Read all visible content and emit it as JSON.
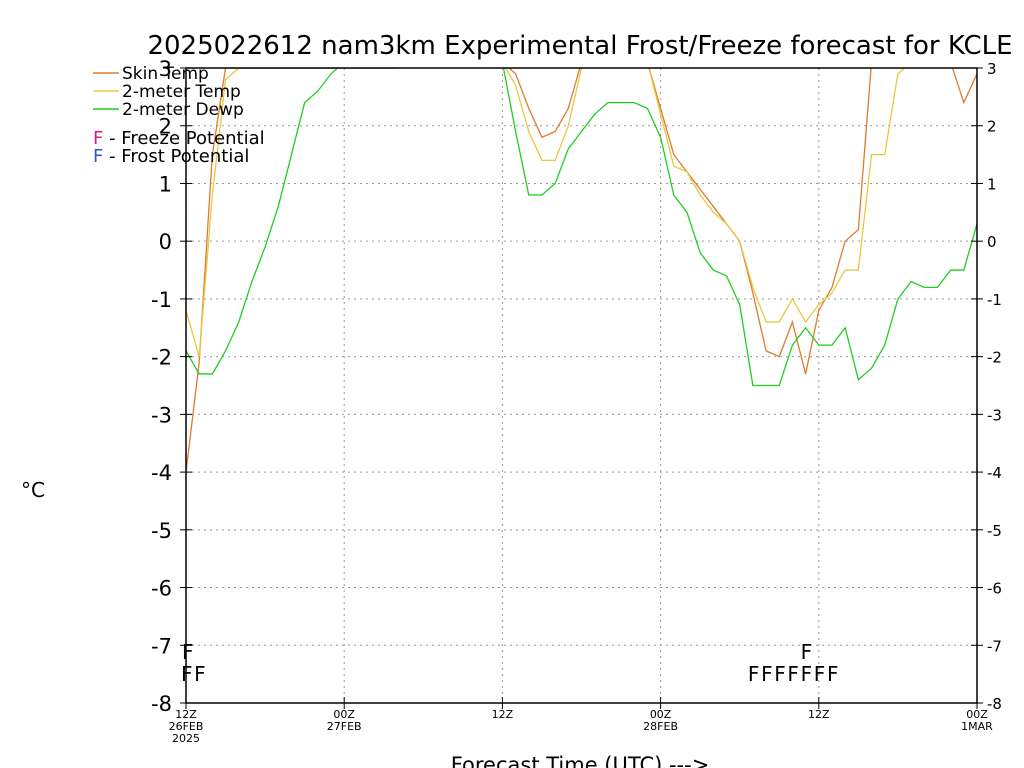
{
  "chart_data": {
    "type": "line",
    "title": "2025022612 nam3km Experimental Frost/Freeze forecast for KCLE",
    "xlabel": "Forecast Time (UTC) --->",
    "ylabel": "°C",
    "ylim": [
      -8,
      3
    ],
    "y_ticks": [
      -8,
      -7,
      -6,
      -5,
      -4,
      -3,
      -2,
      -1,
      0,
      1,
      2,
      3
    ],
    "x_range_hours": [
      0,
      60
    ],
    "grid": "dotted",
    "legend_position": "top-left",
    "x_ticks": [
      {
        "hour": 0,
        "lines": [
          "12Z",
          "26FEB",
          "2025"
        ]
      },
      {
        "hour": 12,
        "lines": [
          "00Z",
          "27FEB"
        ]
      },
      {
        "hour": 24,
        "lines": [
          "12Z"
        ]
      },
      {
        "hour": 36,
        "lines": [
          "00Z",
          "28FEB"
        ]
      },
      {
        "hour": 48,
        "lines": [
          "12Z"
        ]
      },
      {
        "hour": 60,
        "lines": [
          "00Z",
          "1MAR"
        ]
      }
    ],
    "series": [
      {
        "name": "Skin Temp",
        "color": "#e07a2e",
        "x": [
          0,
          1,
          2,
          3,
          4,
          8,
          16,
          17,
          18,
          19,
          20,
          21,
          22,
          23,
          24,
          25,
          26,
          27,
          28,
          29,
          30,
          31,
          32,
          33,
          34,
          35,
          36,
          37,
          38,
          39,
          40,
          41,
          42,
          43,
          44,
          45,
          46,
          47,
          48,
          49,
          50,
          51,
          52,
          53,
          54,
          55,
          56,
          57,
          58,
          59,
          60
        ],
        "y": [
          -4,
          -2.1,
          1.5,
          3,
          3,
          3,
          3,
          3.1,
          3.1,
          3.1,
          3.1,
          3.1,
          3.1,
          3.1,
          3.1,
          2.9,
          2.3,
          1.8,
          1.9,
          2.3,
          3.1,
          3.1,
          3.1,
          3.1,
          3.1,
          3.1,
          2.3,
          1.5,
          1.2,
          0.9,
          0.6,
          0.3,
          0,
          -0.9,
          -1.9,
          -2.0,
          -1.4,
          -2.3,
          -1.2,
          -0.8,
          0,
          0.2,
          3.1,
          3.1,
          3.1,
          3.1,
          3.1,
          3.1,
          3.1,
          2.4,
          2.9
        ]
      },
      {
        "name": "2-meter Temp",
        "color": "#e8c840",
        "x": [
          0,
          1,
          2,
          3,
          4,
          8,
          16,
          17,
          18,
          19,
          20,
          21,
          22,
          23,
          24,
          25,
          26,
          27,
          28,
          29,
          30,
          31,
          32,
          33,
          34,
          35,
          36,
          37,
          38,
          39,
          40,
          41,
          42,
          43,
          44,
          45,
          46,
          47,
          48,
          49,
          50,
          51,
          52,
          53,
          54,
          55,
          56,
          57,
          58,
          59,
          60
        ],
        "y": [
          -1.2,
          -2.0,
          0.8,
          2.8,
          3,
          3,
          3,
          3.1,
          3.1,
          3.1,
          3.1,
          3.1,
          3.1,
          3.1,
          3.1,
          2.7,
          1.9,
          1.4,
          1.4,
          2.0,
          3.0,
          3.1,
          3.1,
          3.1,
          3.1,
          3.1,
          2.2,
          1.3,
          1.2,
          0.8,
          0.5,
          0.3,
          0,
          -0.8,
          -1.4,
          -1.4,
          -1.0,
          -1.4,
          -1.1,
          -0.9,
          -0.5,
          -0.5,
          1.5,
          1.5,
          2.9,
          3.1,
          3.1,
          3.1,
          3.1,
          3.1,
          3.1
        ]
      },
      {
        "name": "2-meter Dewp",
        "color": "#22cc22",
        "x": [
          0,
          1,
          2,
          3,
          4,
          5,
          6,
          7,
          8,
          9,
          10,
          11,
          12,
          24,
          25,
          26,
          27,
          28,
          29,
          30,
          31,
          32,
          33,
          34,
          35,
          36,
          37,
          38,
          39,
          40,
          41,
          42,
          43,
          44,
          45,
          46,
          47,
          48,
          49,
          50,
          51,
          52,
          53,
          54,
          55,
          56,
          57,
          58,
          59,
          60
        ],
        "y": [
          -1.9,
          -2.3,
          -2.3,
          -1.9,
          -1.4,
          -0.7,
          -0.1,
          0.6,
          1.5,
          2.4,
          2.6,
          2.9,
          3.1,
          3.1,
          1.9,
          0.8,
          0.8,
          1.0,
          1.6,
          1.9,
          2.2,
          2.4,
          2.4,
          2.4,
          2.3,
          1.8,
          0.8,
          0.5,
          -0.2,
          -0.5,
          -0.6,
          -1.1,
          -2.5,
          -2.5,
          -2.5,
          -1.8,
          -1.5,
          -1.8,
          -1.8,
          -1.5,
          -2.4,
          -2.2,
          -1.8,
          -1.0,
          -0.7,
          -0.8,
          -0.8,
          -0.5,
          -0.5,
          0.3
        ]
      }
    ],
    "potential_rows": {
      "frost": {
        "label": "F - Frost Potential",
        "color": "#3355cc",
        "letter": "F",
        "hours": [
          0,
          47
        ]
      },
      "freeze": {
        "label": "F - Freeze Potential",
        "color": "#cc2288",
        "letter": "F",
        "hours": [
          0,
          1,
          43,
          44,
          45,
          46,
          47,
          48,
          49
        ]
      }
    }
  }
}
